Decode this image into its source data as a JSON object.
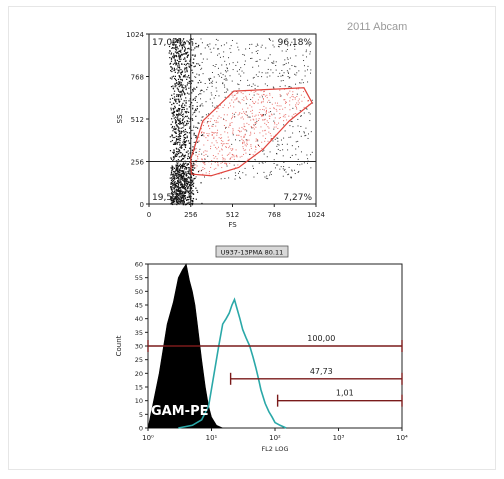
{
  "watermark": "2011 Abcam",
  "chart_data": [
    {
      "type": "scatter",
      "xlabel": "FS",
      "ylabel": "SS",
      "xlim": [
        0,
        1024
      ],
      "ylim": [
        0,
        1024
      ],
      "xticks": [
        "0",
        "256",
        "512",
        "768",
        "1024"
      ],
      "yticks": [
        "0",
        "256",
        "512",
        "768",
        "1024"
      ],
      "quadrant_gate": {
        "x": 256,
        "y": 256
      },
      "quadrant_labels": {
        "upper_left": "17,02%",
        "upper_right": "96,18%",
        "lower_left": "19,59%",
        "lower_right": "7,27%"
      },
      "gated_polygon": [
        [
          256,
          270
        ],
        [
          330,
          500
        ],
        [
          520,
          680
        ],
        [
          950,
          700
        ],
        [
          1000,
          610
        ],
        [
          860,
          500
        ],
        [
          700,
          330
        ],
        [
          550,
          220
        ],
        [
          380,
          170
        ],
        [
          260,
          180
        ]
      ],
      "colors": {
        "ungated": "#111111",
        "gated": "#e0433c",
        "gate": "#e0433c"
      }
    },
    {
      "type": "histogram",
      "title": "U937-13PMA 80.11",
      "xlabel": "FL2 LOG",
      "ylabel": "Count",
      "xscale": "log",
      "xlim": [
        1,
        10000
      ],
      "ylim": [
        0,
        60
      ],
      "xticks": [
        "10⁰",
        "10¹",
        "10²",
        "10³",
        "10⁴"
      ],
      "yticks": [
        "0",
        "5",
        "10",
        "15",
        "20",
        "25",
        "30",
        "35",
        "40",
        "45",
        "50",
        "55",
        "60"
      ],
      "series": [
        {
          "name": "GAM-PE",
          "x": [
            1,
            1.5,
            2,
            2.5,
            3,
            3.5,
            4,
            4.5,
            5,
            5.5,
            6,
            7,
            8,
            9,
            10,
            12,
            15
          ],
          "y": [
            0,
            20,
            38,
            46,
            55,
            58,
            60,
            54,
            50,
            45,
            38,
            25,
            15,
            8,
            4,
            1,
            0
          ],
          "fill": "#000000"
        },
        {
          "name": "",
          "x": [
            3,
            5,
            7,
            9,
            11,
            13,
            15,
            17,
            19,
            21,
            23,
            25,
            28,
            31,
            35,
            40,
            45,
            50,
            55,
            60,
            70,
            80,
            90,
            100,
            120,
            150
          ],
          "y": [
            0,
            1,
            3,
            8,
            20,
            30,
            38,
            40,
            42,
            45,
            47,
            44,
            40,
            36,
            33,
            30,
            26,
            22,
            18,
            14,
            9,
            6,
            4,
            2,
            1,
            0
          ],
          "stroke": "#2aa8a8"
        }
      ],
      "markers": [
        {
          "label": "100,00",
          "x_start": 1,
          "x_end": 10000,
          "y": 30
        },
        {
          "label": "47,73",
          "x_start": 20,
          "x_end": 10000,
          "y": 18
        },
        {
          "label": "1,01",
          "x_start": 110,
          "x_end": 10000,
          "y": 10
        }
      ],
      "marker_color": "#7a1a1a"
    }
  ]
}
